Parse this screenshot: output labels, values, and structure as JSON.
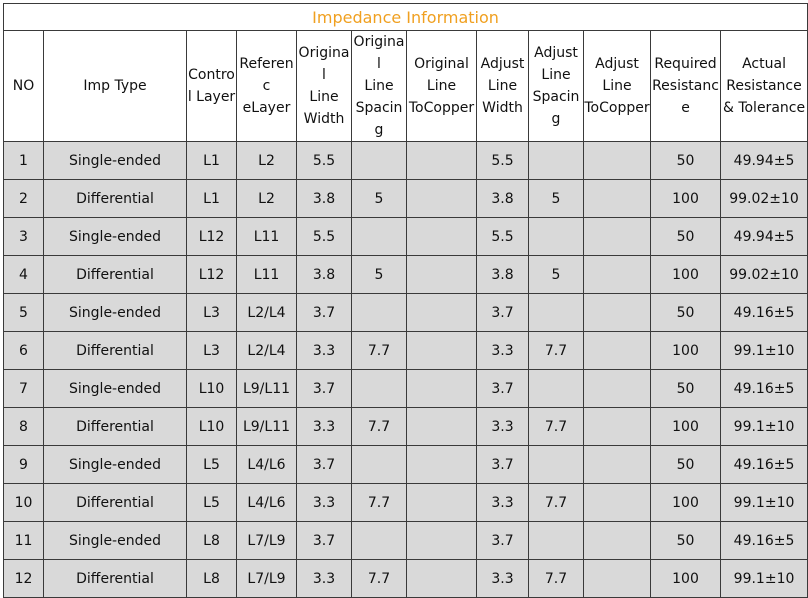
{
  "title": "Impedance Information",
  "headers": [
    [
      "NO"
    ],
    [
      "Imp Type"
    ],
    [
      "Contro",
      "l Layer"
    ],
    [
      "Referenc",
      "eLayer"
    ],
    [
      "Original",
      "Line",
      "Width"
    ],
    [
      "Original",
      "Line",
      "Spacing"
    ],
    [
      "Original",
      "Line",
      "ToCopper"
    ],
    [
      "Adjust",
      "Line",
      "Width"
    ],
    [
      "Adjust",
      "Line",
      "Spacing"
    ],
    [
      "Adjust",
      "Line",
      "ToCopper"
    ],
    [
      "Required",
      "Resistanc",
      "e"
    ],
    [
      "Actual",
      "Resistance",
      "& Tolerance"
    ]
  ],
  "rows": [
    [
      "1",
      "Single-ended",
      "L1",
      "L2",
      "5.5",
      "",
      "",
      "5.5",
      "",
      "",
      "50",
      "49.94±5"
    ],
    [
      "2",
      "Differential",
      "L1",
      "L2",
      "3.8",
      "5",
      "",
      "3.8",
      "5",
      "",
      "100",
      "99.02±10"
    ],
    [
      "3",
      "Single-ended",
      "L12",
      "L11",
      "5.5",
      "",
      "",
      "5.5",
      "",
      "",
      "50",
      "49.94±5"
    ],
    [
      "4",
      "Differential",
      "L12",
      "L11",
      "3.8",
      "5",
      "",
      "3.8",
      "5",
      "",
      "100",
      "99.02±10"
    ],
    [
      "5",
      "Single-ended",
      "L3",
      "L2/L4",
      "3.7",
      "",
      "",
      "3.7",
      "",
      "",
      "50",
      "49.16±5"
    ],
    [
      "6",
      "Differential",
      "L3",
      "L2/L4",
      "3.3",
      "7.7",
      "",
      "3.3",
      "7.7",
      "",
      "100",
      "99.1±10"
    ],
    [
      "7",
      "Single-ended",
      "L10",
      "L9/L11",
      "3.7",
      "",
      "",
      "3.7",
      "",
      "",
      "50",
      "49.16±5"
    ],
    [
      "8",
      "Differential",
      "L10",
      "L9/L11",
      "3.3",
      "7.7",
      "",
      "3.3",
      "7.7",
      "",
      "100",
      "99.1±10"
    ],
    [
      "9",
      "Single-ended",
      "L5",
      "L4/L6",
      "3.7",
      "",
      "",
      "3.7",
      "",
      "",
      "50",
      "49.16±5"
    ],
    [
      "10",
      "Differential",
      "L5",
      "L4/L6",
      "3.3",
      "7.7",
      "",
      "3.3",
      "7.7",
      "",
      "100",
      "99.1±10"
    ],
    [
      "11",
      "Single-ended",
      "L8",
      "L7/L9",
      "3.7",
      "",
      "",
      "3.7",
      "",
      "",
      "50",
      "49.16±5"
    ],
    [
      "12",
      "Differential",
      "L8",
      "L7/L9",
      "3.3",
      "7.7",
      "",
      "3.3",
      "7.7",
      "",
      "100",
      "99.1±10"
    ]
  ],
  "colors": {
    "title_text": "#f0a020",
    "row_background": "#d9d9d9",
    "border": "#3a3a3a"
  }
}
